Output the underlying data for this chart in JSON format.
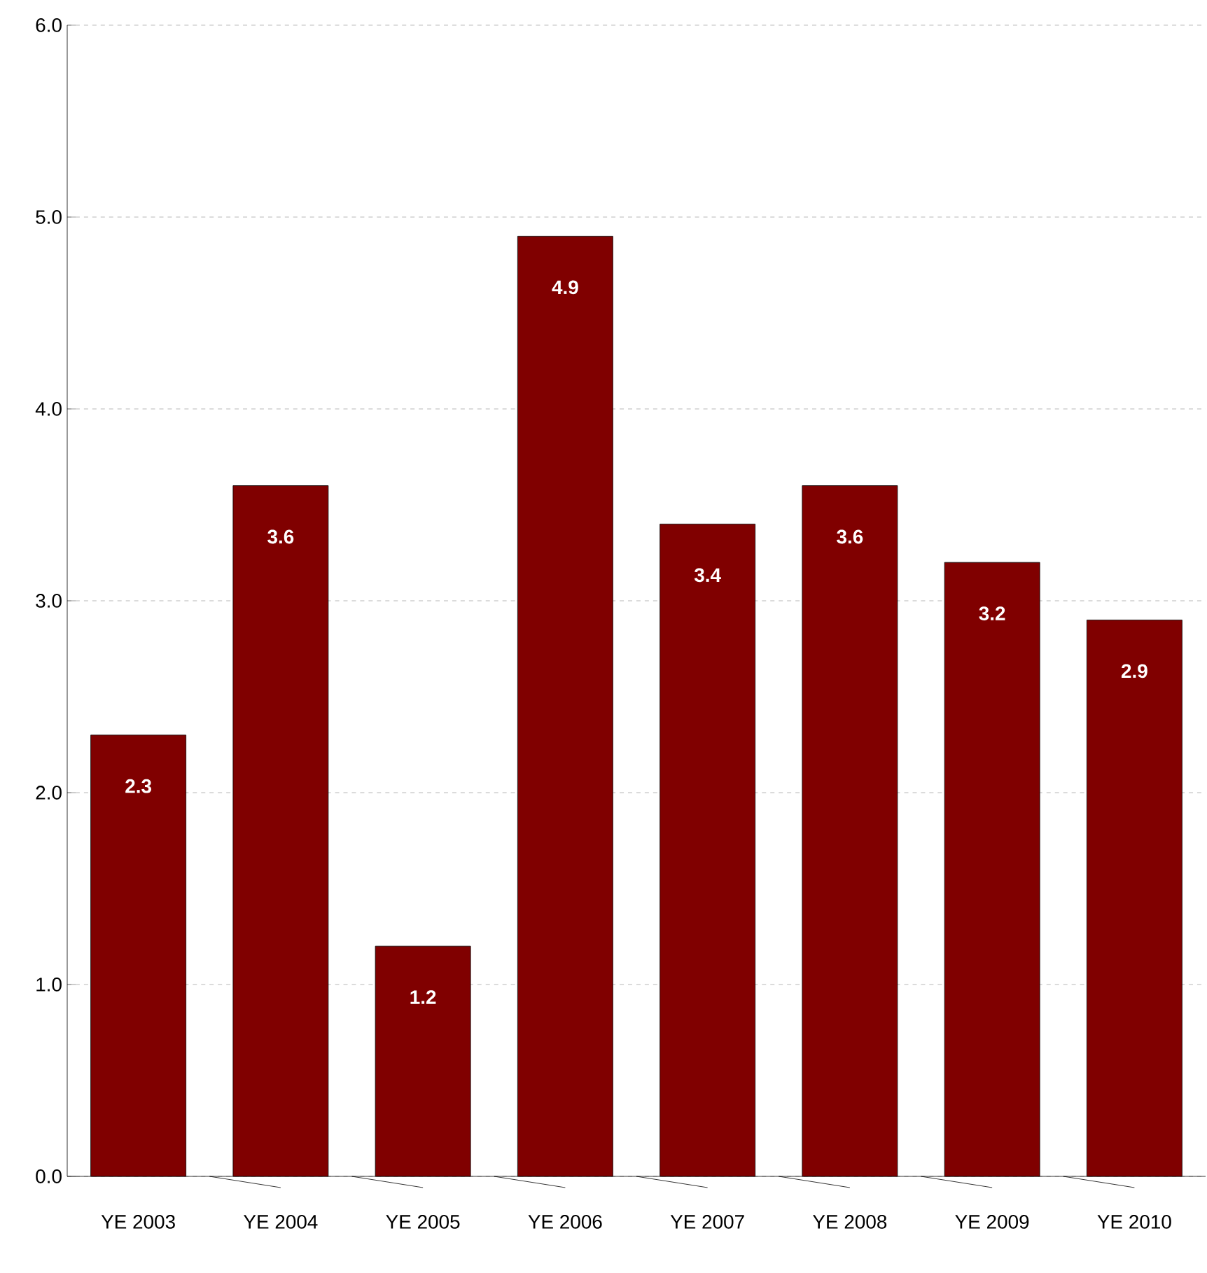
{
  "chart_data": {
    "type": "bar",
    "categories": [
      "YE 2003",
      "YE 2004",
      "YE 2005",
      "YE 2006",
      "YE 2007",
      "YE 2008",
      "YE 2009",
      "YE 2010"
    ],
    "values": [
      2.3,
      3.6,
      1.2,
      4.9,
      3.4,
      3.6,
      3.2,
      2.9
    ],
    "color": "#800000",
    "ylim": [
      0,
      6
    ],
    "yticks": [
      {
        "value": 0,
        "label": "0.0"
      },
      {
        "value": 1,
        "label": "1.0"
      },
      {
        "value": 2,
        "label": "2.0"
      },
      {
        "value": 3,
        "label": "3.0"
      },
      {
        "value": 4,
        "label": "4.0"
      },
      {
        "value": 5,
        "label": "5.0"
      },
      {
        "value": 6,
        "label": "6.0"
      }
    ],
    "grid": "y",
    "data_labels": true
  }
}
